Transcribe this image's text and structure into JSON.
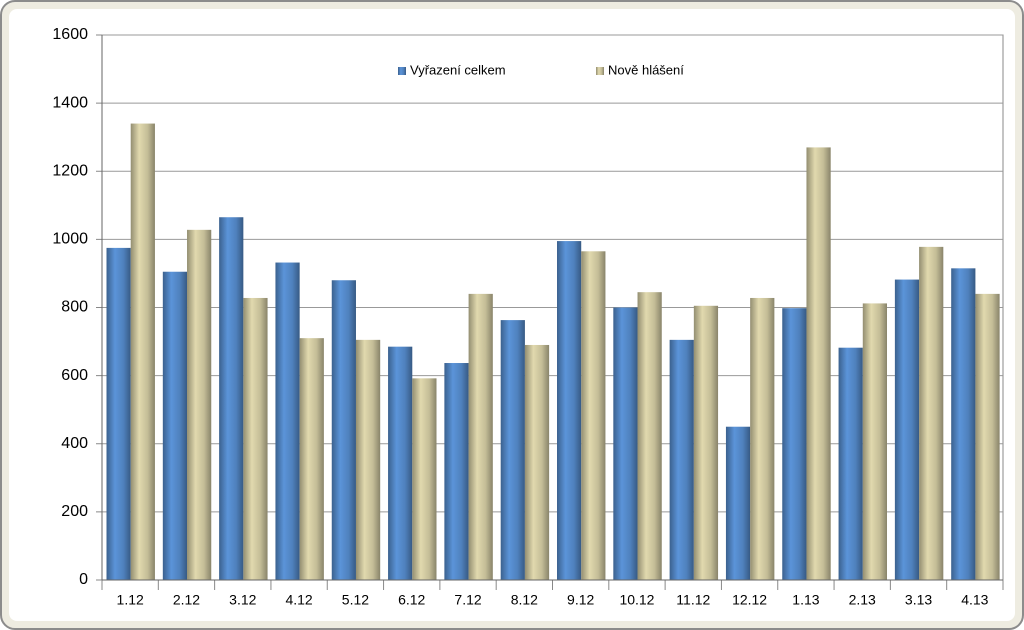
{
  "chart_data": {
    "type": "bar",
    "categories": [
      "1.12",
      "2.12",
      "3.12",
      "4.12",
      "5.12",
      "6.12",
      "7.12",
      "8.12",
      "9.12",
      "10.12",
      "11.12",
      "12.12",
      "1.13",
      "2.13",
      "3.13",
      "4.13"
    ],
    "series": [
      {
        "name": "Vyřazení celkem",
        "color": "#4f81bd",
        "values": [
          975,
          905,
          1065,
          932,
          880,
          685,
          637,
          763,
          995,
          800,
          705,
          450,
          798,
          682,
          882,
          915
        ]
      },
      {
        "name": "Nově hlášení",
        "color": "#c4bd97",
        "values": [
          1340,
          1028,
          828,
          710,
          705,
          592,
          840,
          690,
          965,
          845,
          805,
          828,
          1270,
          812,
          978,
          840
        ]
      }
    ],
    "ylim": [
      0,
      1600
    ],
    "yticks": [
      0,
      200,
      400,
      600,
      800,
      1000,
      1200,
      1400,
      1600
    ],
    "grid": true,
    "legend": "top"
  }
}
